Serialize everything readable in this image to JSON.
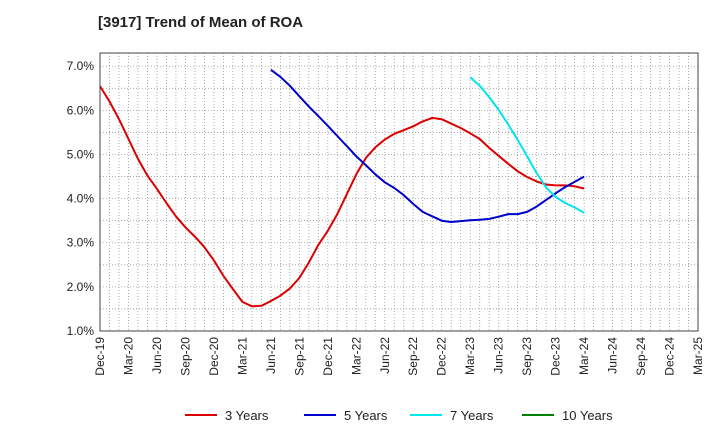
{
  "chart_data": {
    "type": "line",
    "title": "[3917]  Trend of Mean of ROA",
    "ylim": [
      1.0,
      7.3
    ],
    "y_ticks": [
      "1.0%",
      "2.0%",
      "3.0%",
      "4.0%",
      "5.0%",
      "6.0%",
      "7.0%"
    ],
    "y_tick_values": [
      1,
      2,
      3,
      4,
      5,
      6,
      7
    ],
    "x_ticks": [
      "Dec-19",
      "Mar-20",
      "Jun-20",
      "Sep-20",
      "Dec-20",
      "Mar-21",
      "Jun-21",
      "Sep-21",
      "Dec-21",
      "Mar-22",
      "Jun-22",
      "Sep-22",
      "Dec-22",
      "Mar-23",
      "Jun-23",
      "Sep-23",
      "Dec-23",
      "Mar-24",
      "Jun-24",
      "Sep-24",
      "Dec-24",
      "Mar-25"
    ],
    "grid": true,
    "legend_position": "bottom",
    "series": [
      {
        "name": "3 Years",
        "color": "#dd0000",
        "start_index": 0,
        "values": [
          6.55,
          6.2,
          5.8,
          5.35,
          4.9,
          4.52,
          4.22,
          3.9,
          3.6,
          3.35,
          3.14,
          2.9,
          2.6,
          2.25,
          1.95,
          1.66,
          1.56,
          1.57,
          1.68,
          1.8,
          1.96,
          2.2,
          2.55,
          2.95,
          3.27,
          3.65,
          4.1,
          4.55,
          4.92,
          5.16,
          5.34,
          5.47,
          5.55,
          5.64,
          5.75,
          5.83,
          5.8,
          5.7,
          5.6,
          5.48,
          5.35,
          5.15,
          4.97,
          4.79,
          4.62,
          4.49,
          4.39,
          4.32,
          4.3,
          4.3,
          4.28,
          4.23
        ]
      },
      {
        "name": "5 Years",
        "color": "#0000cc",
        "start_index": 18,
        "values": [
          6.92,
          6.76,
          6.56,
          6.32,
          6.09,
          5.87,
          5.65,
          5.42,
          5.19,
          4.96,
          4.76,
          4.55,
          4.37,
          4.24,
          4.08,
          3.88,
          3.7,
          3.6,
          3.5,
          3.47,
          3.49,
          3.51,
          3.52,
          3.54,
          3.59,
          3.65,
          3.65,
          3.7,
          3.82,
          3.97,
          4.12,
          4.26,
          4.38,
          4.5
        ]
      },
      {
        "name": "7 Years",
        "color": "#00e5ee",
        "start_index": 39,
        "values": [
          6.75,
          6.56,
          6.3,
          6.01,
          5.68,
          5.33,
          4.96,
          4.58,
          4.25,
          4.04,
          3.9,
          3.8,
          3.68
        ]
      },
      {
        "name": "10 Years",
        "color": "#008000",
        "start_index": 0,
        "values": []
      }
    ]
  }
}
